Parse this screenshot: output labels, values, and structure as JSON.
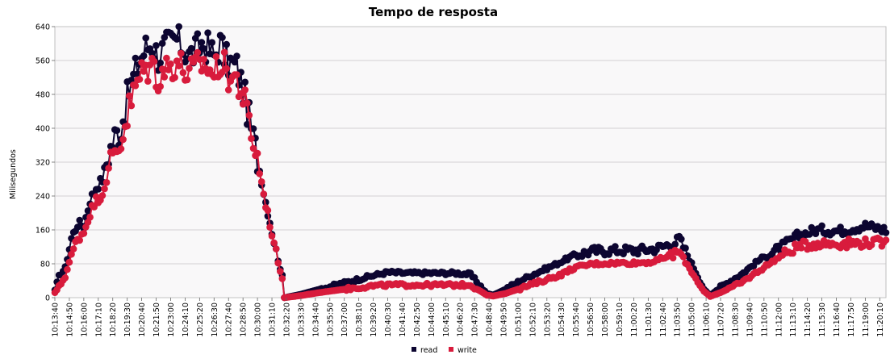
{
  "chart_data": {
    "type": "line",
    "title": "Tempo de resposta",
    "ylabel": "Milisegundos",
    "xlabel": "",
    "ylim": [
      0,
      640
    ],
    "yticks": [
      0,
      80,
      160,
      240,
      320,
      400,
      480,
      560,
      640
    ],
    "grid": true,
    "legend": "bottom-center",
    "x_start": "10:13:40",
    "x_step_seconds": 10,
    "x_end": "11:20:40",
    "xticks": [
      "10:13:40",
      "10:14:50",
      "10:16:00",
      "10:17:10",
      "10:18:20",
      "10:19:30",
      "10:20:40",
      "10:21:50",
      "10:23:00",
      "10:24:10",
      "10:25:20",
      "10:26:30",
      "10:27:40",
      "10:28:50",
      "10:30:00",
      "10:31:10",
      "10:32:20",
      "10:33:30",
      "10:34:40",
      "10:35:50",
      "10:37:00",
      "10:38:10",
      "10:39:20",
      "10:40:30",
      "10:41:40",
      "10:42:50",
      "10:44:00",
      "10:45:10",
      "10:46:20",
      "10:47:30",
      "10:48:40",
      "10:49:50",
      "10:51:00",
      "10:52:10",
      "10:53:20",
      "10:54:30",
      "10:55:40",
      "10:56:50",
      "10:58:00",
      "10:59:10",
      "11:00:20",
      "11:01:30",
      "11:02:40",
      "11:03:50",
      "11:05:00",
      "11:06:10",
      "11:07:20",
      "11:08:30",
      "11:09:40",
      "11:10:50",
      "11:12:00",
      "11:13:10",
      "11:14:20",
      "11:15:30",
      "11:16:40",
      "11:17:50",
      "11:19:00",
      "11:20:10"
    ],
    "series": [
      {
        "name": "read",
        "color": "#0c0530",
        "anchors": [
          [
            "10:13:40",
            18
          ],
          [
            "10:14:00",
            50
          ],
          [
            "10:14:30",
            70
          ],
          [
            "10:15:00",
            140
          ],
          [
            "10:15:30",
            175
          ],
          [
            "10:16:00",
            170
          ],
          [
            "10:16:30",
            230
          ],
          [
            "10:17:00",
            260
          ],
          [
            "10:17:30",
            280
          ],
          [
            "10:18:00",
            340
          ],
          [
            "10:18:30",
            380
          ],
          [
            "10:19:00",
            400
          ],
          [
            "10:19:30",
            470
          ],
          [
            "10:20:00",
            520
          ],
          [
            "10:20:30",
            560
          ],
          [
            "10:21:00",
            590
          ],
          [
            "10:21:30",
            600
          ],
          [
            "10:22:00",
            570
          ],
          [
            "10:22:30",
            590
          ],
          [
            "10:23:00",
            600
          ],
          [
            "10:23:30",
            610
          ],
          [
            "10:24:00",
            590
          ],
          [
            "10:24:30",
            570
          ],
          [
            "10:25:00",
            580
          ],
          [
            "10:25:30",
            600
          ],
          [
            "10:26:00",
            590
          ],
          [
            "10:26:30",
            570
          ],
          [
            "10:27:00",
            600
          ],
          [
            "10:27:30",
            560
          ],
          [
            "10:28:00",
            550
          ],
          [
            "10:28:20",
            545
          ],
          [
            "10:28:40",
            510
          ],
          [
            "10:29:00",
            470
          ],
          [
            "10:29:30",
            400
          ],
          [
            "10:30:00",
            330
          ],
          [
            "10:30:30",
            250
          ],
          [
            "10:31:00",
            180
          ],
          [
            "10:31:30",
            110
          ],
          [
            "10:32:00",
            50
          ],
          [
            "10:32:10",
            0
          ],
          [
            "10:33:30",
            8
          ],
          [
            "10:35:00",
            20
          ],
          [
            "10:37:00",
            35
          ],
          [
            "10:39:00",
            50
          ],
          [
            "10:40:30",
            60
          ],
          [
            "10:42:00",
            58
          ],
          [
            "10:44:00",
            58
          ],
          [
            "10:46:00",
            58
          ],
          [
            "10:47:10",
            55
          ],
          [
            "10:48:30",
            10
          ],
          [
            "10:49:00",
            6
          ],
          [
            "10:50:00",
            20
          ],
          [
            "10:51:30",
            45
          ],
          [
            "10:53:00",
            65
          ],
          [
            "10:54:30",
            85
          ],
          [
            "10:55:30",
            100
          ],
          [
            "10:57:00",
            110
          ],
          [
            "10:59:00",
            112
          ],
          [
            "11:00:30",
            112
          ],
          [
            "11:02:00",
            115
          ],
          [
            "11:03:40",
            130
          ],
          [
            "11:04:00",
            140
          ],
          [
            "11:06:00",
            20
          ],
          [
            "11:06:30",
            5
          ],
          [
            "11:07:20",
            25
          ],
          [
            "11:09:00",
            55
          ],
          [
            "11:10:30",
            90
          ],
          [
            "11:12:00",
            115
          ],
          [
            "11:13:30",
            145
          ],
          [
            "11:15:00",
            160
          ],
          [
            "11:17:00",
            158
          ],
          [
            "11:19:00",
            170
          ],
          [
            "11:20:40",
            160
          ]
        ]
      },
      {
        "name": "write",
        "color": "#d81b3c",
        "anchors": [
          [
            "10:13:40",
            12
          ],
          [
            "10:14:00",
            25
          ],
          [
            "10:14:30",
            50
          ],
          [
            "10:15:00",
            100
          ],
          [
            "10:15:30",
            140
          ],
          [
            "10:16:00",
            155
          ],
          [
            "10:16:30",
            200
          ],
          [
            "10:17:00",
            230
          ],
          [
            "10:17:30",
            245
          ],
          [
            "10:18:00",
            300
          ],
          [
            "10:18:30",
            340
          ],
          [
            "10:19:00",
            370
          ],
          [
            "10:19:30",
            430
          ],
          [
            "10:20:00",
            480
          ],
          [
            "10:20:30",
            520
          ],
          [
            "10:21:00",
            540
          ],
          [
            "10:21:30",
            550
          ],
          [
            "10:22:00",
            520
          ],
          [
            "10:22:30",
            540
          ],
          [
            "10:23:00",
            545
          ],
          [
            "10:23:30",
            560
          ],
          [
            "10:24:00",
            540
          ],
          [
            "10:24:30",
            525
          ],
          [
            "10:25:00",
            540
          ],
          [
            "10:25:30",
            555
          ],
          [
            "10:26:00",
            545
          ],
          [
            "10:26:30",
            525
          ],
          [
            "10:27:00",
            560
          ],
          [
            "10:27:30",
            530
          ],
          [
            "10:28:00",
            520
          ],
          [
            "10:28:20",
            515
          ],
          [
            "10:28:40",
            490
          ],
          [
            "10:29:00",
            455
          ],
          [
            "10:29:30",
            390
          ],
          [
            "10:30:00",
            325
          ],
          [
            "10:30:30",
            245
          ],
          [
            "10:31:00",
            175
          ],
          [
            "10:31:30",
            105
          ],
          [
            "10:32:00",
            45
          ],
          [
            "10:32:10",
            0
          ],
          [
            "10:33:30",
            5
          ],
          [
            "10:35:00",
            12
          ],
          [
            "10:37:00",
            20
          ],
          [
            "10:39:00",
            27
          ],
          [
            "10:40:30",
            30
          ],
          [
            "10:42:00",
            30
          ],
          [
            "10:44:00",
            30
          ],
          [
            "10:46:00",
            30
          ],
          [
            "10:47:10",
            30
          ],
          [
            "10:48:30",
            6
          ],
          [
            "10:49:00",
            4
          ],
          [
            "10:50:00",
            10
          ],
          [
            "10:51:30",
            25
          ],
          [
            "10:53:00",
            40
          ],
          [
            "10:54:30",
            55
          ],
          [
            "10:55:30",
            70
          ],
          [
            "10:57:00",
            80
          ],
          [
            "10:59:00",
            82
          ],
          [
            "11:00:30",
            82
          ],
          [
            "11:02:00",
            85
          ],
          [
            "11:03:40",
            105
          ],
          [
            "11:04:00",
            108
          ],
          [
            "11:06:00",
            15
          ],
          [
            "11:06:30",
            3
          ],
          [
            "11:07:20",
            12
          ],
          [
            "11:09:00",
            35
          ],
          [
            "11:10:30",
            65
          ],
          [
            "11:12:00",
            95
          ],
          [
            "11:13:30",
            120
          ],
          [
            "11:15:00",
            128
          ],
          [
            "11:17:00",
            128
          ],
          [
            "11:19:00",
            130
          ],
          [
            "11:20:40",
            130
          ]
        ]
      }
    ]
  }
}
